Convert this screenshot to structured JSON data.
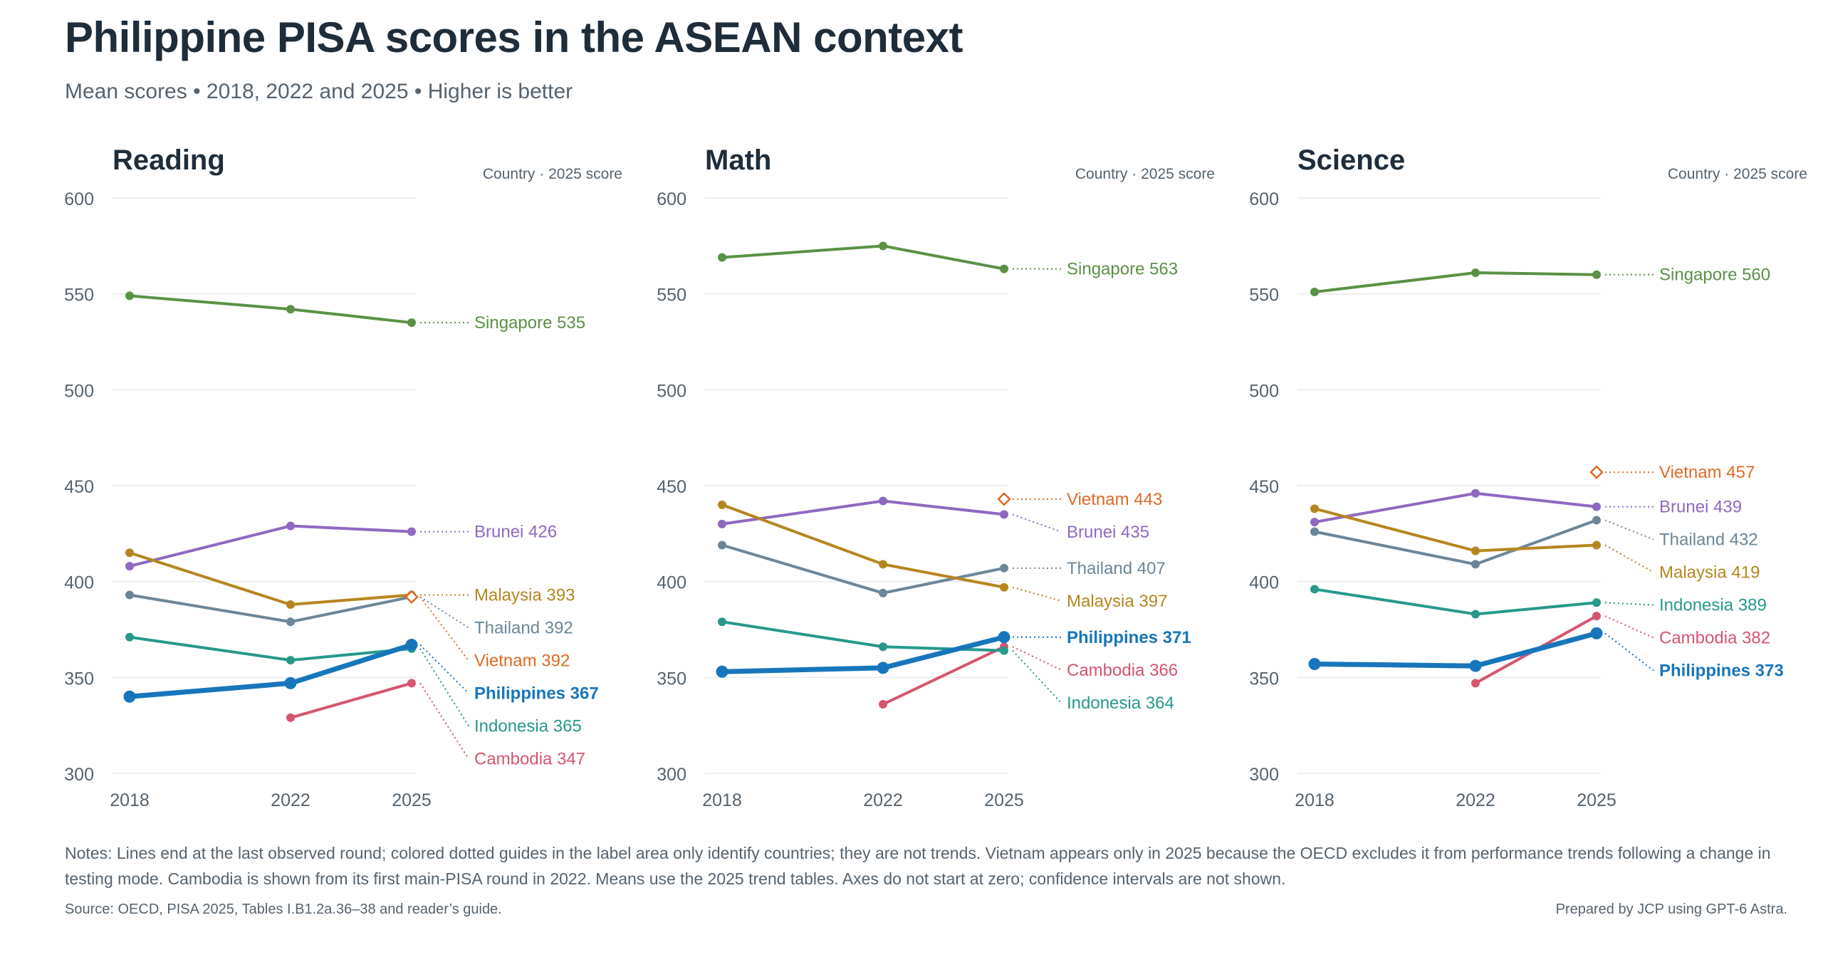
{
  "title": "Philippine PISA scores in the ASEAN context",
  "subtitle": "Mean scores • 2018, 2022 and 2025 • Higher is better",
  "notes": "Notes: Lines end at the last observed round; colored dotted guides in the label area only identify countries; they are not trends. Vietnam appears only in 2025 because the OECD excludes it from performance trends following a change in testing mode. Cambodia is shown from its first main-PISA round in 2022. Means use the 2025 trend tables. Axes do not start at zero; confidence intervals are not shown.",
  "source": "Source: OECD, PISA 2025, Tables I.B1.2a.36–38 and reader’s guide.",
  "credit": "Prepared by JCP using GPT-6 Astra.",
  "colors": {
    "Singapore": "#5b9146",
    "Brunei": "#8e69c0",
    "Malaysia": "#b5861f",
    "Thailand": "#6c8698",
    "Vietnam": "#dd6a24",
    "Philippines": "#1776bb",
    "Indonesia": "#26998a",
    "Cambodia": "#d55570",
    "grid": "#e6e9ec",
    "axis_text": "#56636e",
    "header_text": "#1f2d3a"
  },
  "chart_data": [
    {
      "type": "line",
      "title": "Reading",
      "legend_header": "Country · 2025 score",
      "x": [
        "2018",
        "2022",
        "2025"
      ],
      "ylim": [
        300,
        600
      ],
      "yticks": [
        300,
        350,
        400,
        450,
        500,
        550,
        600
      ],
      "grid": true,
      "series": [
        {
          "name": "Singapore",
          "values": [
            549,
            542,
            535
          ],
          "label": "Singapore 535"
        },
        {
          "name": "Brunei",
          "values": [
            408,
            429,
            426
          ],
          "label": "Brunei 426"
        },
        {
          "name": "Malaysia",
          "values": [
            415,
            388,
            393
          ],
          "label": "Malaysia 393"
        },
        {
          "name": "Thailand",
          "values": [
            393,
            379,
            392
          ],
          "label": "Thailand 392"
        },
        {
          "name": "Vietnam",
          "values": [
            null,
            null,
            392
          ],
          "label": "Vietnam 392"
        },
        {
          "name": "Philippines",
          "values": [
            340,
            347,
            367
          ],
          "label": "Philippines 367"
        },
        {
          "name": "Indonesia",
          "values": [
            371,
            359,
            365
          ],
          "label": "Indonesia 365"
        },
        {
          "name": "Cambodia",
          "values": [
            null,
            329,
            347
          ],
          "label": "Cambodia 347"
        }
      ]
    },
    {
      "type": "line",
      "title": "Math",
      "legend_header": "Country · 2025 score",
      "x": [
        "2018",
        "2022",
        "2025"
      ],
      "ylim": [
        300,
        600
      ],
      "yticks": [
        300,
        350,
        400,
        450,
        500,
        550,
        600
      ],
      "grid": true,
      "series": [
        {
          "name": "Singapore",
          "values": [
            569,
            575,
            563
          ],
          "label": "Singapore 563"
        },
        {
          "name": "Vietnam",
          "values": [
            null,
            null,
            443
          ],
          "label": "Vietnam 443"
        },
        {
          "name": "Brunei",
          "values": [
            430,
            442,
            435
          ],
          "label": "Brunei 435"
        },
        {
          "name": "Thailand",
          "values": [
            419,
            394,
            407
          ],
          "label": "Thailand 407"
        },
        {
          "name": "Malaysia",
          "values": [
            440,
            409,
            397
          ],
          "label": "Malaysia 397"
        },
        {
          "name": "Philippines",
          "values": [
            353,
            355,
            371
          ],
          "label": "Philippines 371"
        },
        {
          "name": "Cambodia",
          "values": [
            null,
            336,
            366
          ],
          "label": "Cambodia 366"
        },
        {
          "name": "Indonesia",
          "values": [
            379,
            366,
            364
          ],
          "label": "Indonesia 364"
        }
      ]
    },
    {
      "type": "line",
      "title": "Science",
      "legend_header": "Country · 2025 score",
      "x": [
        "2018",
        "2022",
        "2025"
      ],
      "ylim": [
        300,
        600
      ],
      "yticks": [
        300,
        350,
        400,
        450,
        500,
        550,
        600
      ],
      "grid": true,
      "series": [
        {
          "name": "Singapore",
          "values": [
            551,
            561,
            560
          ],
          "label": "Singapore 560"
        },
        {
          "name": "Vietnam",
          "values": [
            null,
            null,
            457
          ],
          "label": "Vietnam 457"
        },
        {
          "name": "Brunei",
          "values": [
            431,
            446,
            439
          ],
          "label": "Brunei 439"
        },
        {
          "name": "Thailand",
          "values": [
            426,
            409,
            432
          ],
          "label": "Thailand 432"
        },
        {
          "name": "Malaysia",
          "values": [
            438,
            416,
            419
          ],
          "label": "Malaysia 419"
        },
        {
          "name": "Indonesia",
          "values": [
            396,
            383,
            389
          ],
          "label": "Indonesia 389"
        },
        {
          "name": "Cambodia",
          "values": [
            null,
            347,
            382
          ],
          "label": "Cambodia 382"
        },
        {
          "name": "Philippines",
          "values": [
            357,
            356,
            373
          ],
          "label": "Philippines 373"
        }
      ]
    }
  ]
}
